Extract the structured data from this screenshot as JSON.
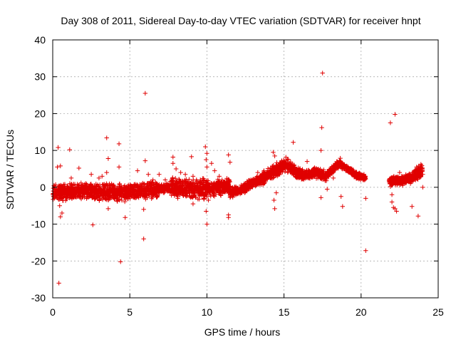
{
  "chart_data": {
    "type": "scatter",
    "title": "Day 308 of 2011, Sidereal Day-to-day VTEC variation (SDTVAR) for receiver hnpt",
    "xlabel": "GPS time / hours",
    "ylabel": "SDTVAR / TECUs",
    "xlim": [
      0,
      25
    ],
    "ylim": [
      -30,
      40
    ],
    "xticks": [
      0,
      5,
      10,
      15,
      20,
      25
    ],
    "yticks": [
      -30,
      -20,
      -10,
      0,
      10,
      20,
      30,
      40
    ],
    "xtick_labels": [
      "0",
      "5",
      "10",
      "15",
      "20",
      "25"
    ],
    "ytick_labels": [
      "-30",
      "-20",
      "-10",
      "0",
      "10",
      "20",
      "30",
      "40"
    ],
    "grid": true,
    "marker": "+",
    "series": [
      {
        "name": "SDTVAR",
        "color": "#e00000",
        "bands": [
          {
            "x0": 0.0,
            "x1": 2.0,
            "y0": -1.5,
            "y1": -1.0,
            "spread": 2.5
          },
          {
            "x0": 2.0,
            "x1": 5.0,
            "y0": -1.0,
            "y1": -1.5,
            "spread": 2.5
          },
          {
            "x0": 5.0,
            "x1": 6.8,
            "y0": -1.5,
            "y1": -0.5,
            "spread": 2.5
          },
          {
            "x0": 6.8,
            "x1": 7.6,
            "y0": -0.5,
            "y1": 0.0,
            "spread": 1.5
          },
          {
            "x0": 7.6,
            "x1": 10.0,
            "y0": 0.0,
            "y1": -0.5,
            "spread": 3.0
          },
          {
            "x0": 10.0,
            "x1": 11.5,
            "y0": -0.5,
            "y1": 0.5,
            "spread": 2.5
          },
          {
            "x0": 11.5,
            "x1": 12.6,
            "y0": -1.5,
            "y1": 0.0,
            "spread": 1.5
          },
          {
            "x0": 12.6,
            "x1": 13.5,
            "y0": 0.5,
            "y1": 2.0,
            "spread": 1.5
          },
          {
            "x0": 13.5,
            "x1": 14.2,
            "y0": 2.0,
            "y1": 4.0,
            "spread": 2.0
          },
          {
            "x0": 14.2,
            "x1": 15.2,
            "y0": 4.0,
            "y1": 6.5,
            "spread": 2.0
          },
          {
            "x0": 15.2,
            "x1": 16.2,
            "y0": 6.0,
            "y1": 3.0,
            "spread": 2.0
          },
          {
            "x0": 16.2,
            "x1": 17.0,
            "y0": 3.0,
            "y1": 4.0,
            "spread": 1.5
          },
          {
            "x0": 17.0,
            "x1": 17.8,
            "y0": 4.0,
            "y1": 3.0,
            "spread": 1.5
          },
          {
            "x0": 17.8,
            "x1": 18.7,
            "y0": 3.5,
            "y1": 7.0,
            "spread": 1.2
          },
          {
            "x0": 18.7,
            "x1": 19.5,
            "y0": 6.0,
            "y1": 4.0,
            "spread": 1.0
          },
          {
            "x0": 19.5,
            "x1": 20.3,
            "y0": 3.5,
            "y1": 2.5,
            "spread": 1.0
          },
          {
            "x0": 21.8,
            "x1": 22.5,
            "y0": 1.5,
            "y1": 2.0,
            "spread": 1.5
          },
          {
            "x0": 22.5,
            "x1": 23.3,
            "y0": 2.0,
            "y1": 2.5,
            "spread": 1.5
          },
          {
            "x0": 23.3,
            "x1": 24.0,
            "y0": 3.0,
            "y1": 4.5,
            "spread": 2.0
          }
        ],
        "points": [
          [
            0.4,
            -26.0
          ],
          [
            0.35,
            10.8
          ],
          [
            0.3,
            5.5
          ],
          [
            0.5,
            5.8
          ],
          [
            0.5,
            -8.0
          ],
          [
            0.45,
            -5.0
          ],
          [
            0.6,
            -7.0
          ],
          [
            1.1,
            10.2
          ],
          [
            1.2,
            2.5
          ],
          [
            1.7,
            5.2
          ],
          [
            2.6,
            -10.2
          ],
          [
            2.5,
            3.5
          ],
          [
            3.0,
            2.5
          ],
          [
            3.2,
            3.0
          ],
          [
            3.5,
            13.4
          ],
          [
            3.6,
            7.8
          ],
          [
            3.5,
            4.0
          ],
          [
            3.6,
            -5.8
          ],
          [
            3.4,
            -3.0
          ],
          [
            4.3,
            11.8
          ],
          [
            4.4,
            -20.2
          ],
          [
            4.3,
            5.5
          ],
          [
            4.7,
            -8.2
          ],
          [
            5.5,
            4.5
          ],
          [
            5.9,
            -14.0
          ],
          [
            6.0,
            25.5
          ],
          [
            6.0,
            7.2
          ],
          [
            5.9,
            -6.0
          ],
          [
            6.2,
            3.5
          ],
          [
            6.5,
            2.0
          ],
          [
            6.9,
            3.5
          ],
          [
            7.3,
            2.0
          ],
          [
            7.8,
            8.2
          ],
          [
            7.8,
            6.5
          ],
          [
            8.0,
            5.0
          ],
          [
            8.3,
            4.0
          ],
          [
            8.6,
            3.5
          ],
          [
            9.0,
            8.3
          ],
          [
            9.1,
            3.0
          ],
          [
            9.1,
            -4.5
          ],
          [
            9.9,
            11.0
          ],
          [
            10.0,
            9.2
          ],
          [
            9.95,
            7.5
          ],
          [
            10.0,
            5.5
          ],
          [
            10.0,
            -10.0
          ],
          [
            9.95,
            -6.5
          ],
          [
            10.1,
            -3.5
          ],
          [
            10.3,
            6.5
          ],
          [
            10.5,
            4.5
          ],
          [
            10.8,
            3.0
          ],
          [
            11.4,
            8.8
          ],
          [
            11.5,
            6.8
          ],
          [
            11.4,
            -8.2
          ],
          [
            11.4,
            -7.5
          ],
          [
            13.3,
            4.0
          ],
          [
            13.7,
            4.5
          ],
          [
            14.3,
            9.5
          ],
          [
            14.4,
            8.5
          ],
          [
            14.5,
            -1.5
          ],
          [
            14.35,
            -3.5
          ],
          [
            14.4,
            -5.8
          ],
          [
            15.6,
            12.2
          ],
          [
            16.5,
            7.0
          ],
          [
            17.4,
            10.0
          ],
          [
            17.5,
            31.0
          ],
          [
            17.45,
            16.2
          ],
          [
            17.4,
            -2.8
          ],
          [
            17.8,
            -0.5
          ],
          [
            18.2,
            2.5
          ],
          [
            18.8,
            -5.2
          ],
          [
            18.7,
            -2.5
          ],
          [
            20.3,
            -17.2
          ],
          [
            20.3,
            -3.0
          ],
          [
            21.9,
            17.5
          ],
          [
            22.2,
            19.8
          ],
          [
            22.0,
            -2.0
          ],
          [
            22.0,
            -4.0
          ],
          [
            22.1,
            -5.5
          ],
          [
            22.3,
            -6.5
          ],
          [
            22.2,
            -5.8
          ],
          [
            23.3,
            -5.2
          ],
          [
            23.7,
            -7.8
          ],
          [
            23.6,
            5.5
          ],
          [
            23.8,
            5.0
          ],
          [
            24.0,
            3.5
          ],
          [
            24.0,
            0.0
          ],
          [
            22.5,
            4.0
          ],
          [
            22.7,
            0.5
          ],
          [
            21.9,
            0.2
          ],
          [
            23.2,
            1.0
          ]
        ]
      }
    ]
  }
}
